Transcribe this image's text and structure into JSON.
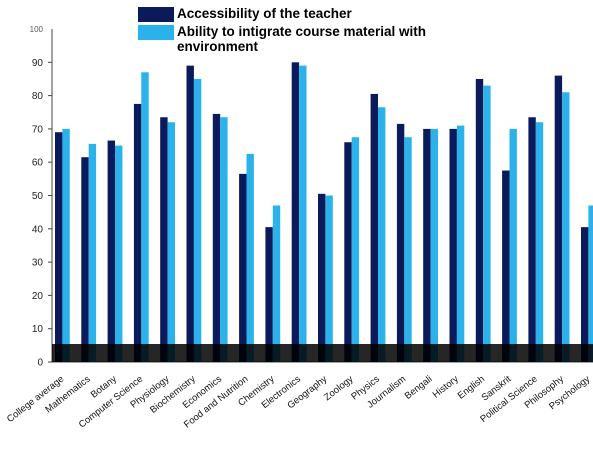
{
  "chart_data": {
    "type": "bar",
    "title": "",
    "xlabel": "",
    "ylabel": "",
    "ylim": [
      0,
      100
    ],
    "yticks": [
      0,
      10,
      20,
      30,
      40,
      50,
      60,
      70,
      80,
      90
    ],
    "ytick_top_label": "100",
    "grid": false,
    "legend_position": "top-center",
    "categories": [
      "College average",
      "Mathematics",
      "Botany",
      "Computer Science",
      "Physiology",
      "Biochemistry",
      "Economics",
      "Food and Nutrition",
      "Chemistry",
      "Electronics",
      "Geography",
      "Zoology",
      "Physics",
      "Journalism",
      "Bengali",
      "History",
      "English",
      "Sanskrit",
      "Political Science",
      "Philosophy",
      "Psychology"
    ],
    "series": [
      {
        "name": "Accessibility of the teacher",
        "color": "#0b1a5a",
        "values": [
          69,
          61.5,
          66.5,
          77.5,
          73.5,
          89,
          74.5,
          56.5,
          40.5,
          90,
          50.5,
          66,
          80.5,
          71.5,
          70,
          70,
          85,
          57.5,
          73.5,
          86,
          40.5
        ]
      },
      {
        "name": "Ability to intigrate course material with environment",
        "color": "#2bb2ea",
        "values": [
          70,
          65.5,
          65,
          87,
          72,
          85,
          73.5,
          62.5,
          47,
          89,
          50,
          67.5,
          76.5,
          67.5,
          70,
          71,
          83,
          70,
          72,
          81,
          47
        ]
      }
    ]
  }
}
